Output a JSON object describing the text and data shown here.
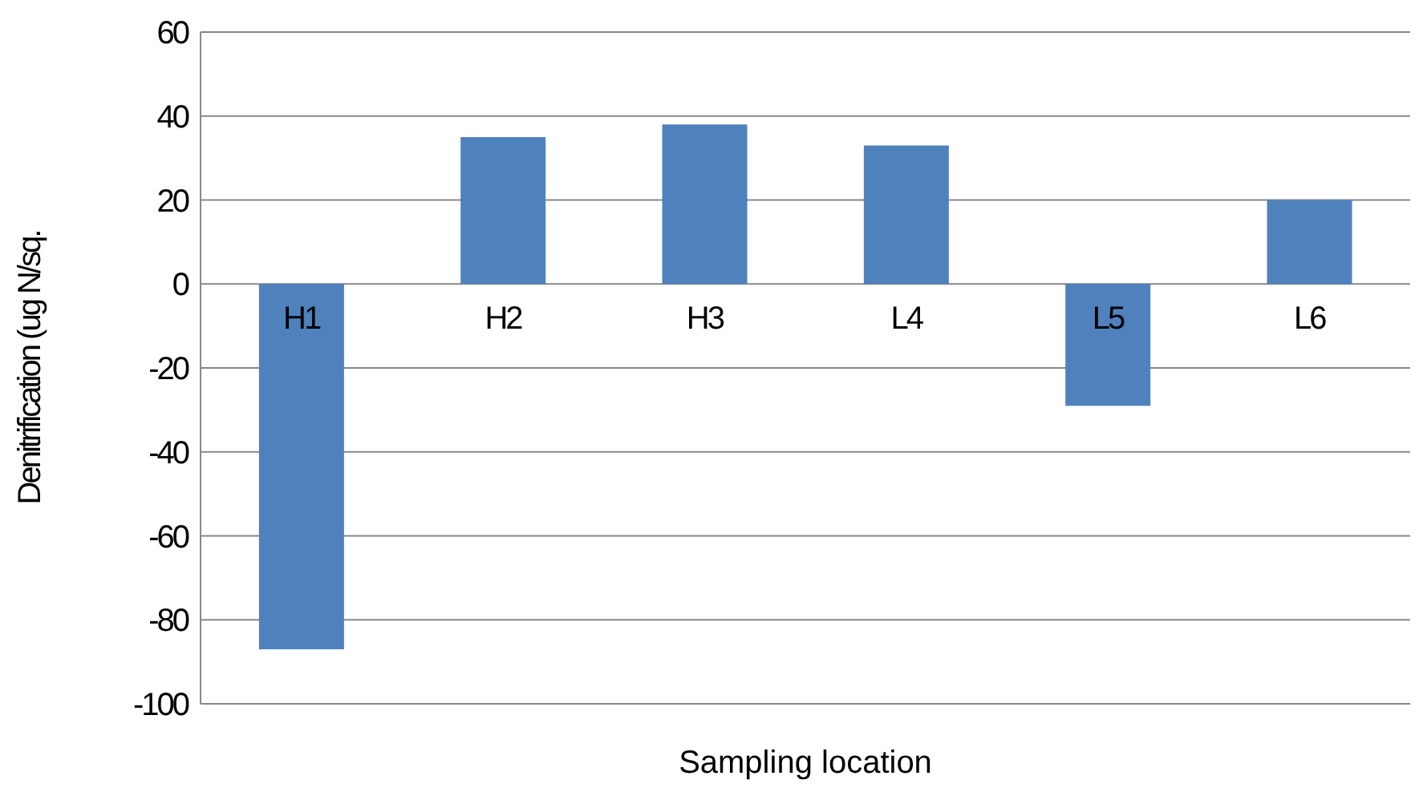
{
  "chart_data": {
    "type": "bar",
    "xlabel": "Sampling location",
    "ylabel": "Denitrification (ug N/sq.",
    "categories": [
      "H1",
      "H2",
      "H3",
      "L4",
      "L5",
      "L6"
    ],
    "values": [
      -87,
      35,
      38,
      33,
      -29,
      20
    ],
    "color": "#4f81bd",
    "ylim": [
      -100,
      60
    ],
    "yticks": [
      -100,
      -80,
      -60,
      -40,
      -20,
      0,
      20,
      40,
      60
    ],
    "grid": "y",
    "legend": false
  }
}
